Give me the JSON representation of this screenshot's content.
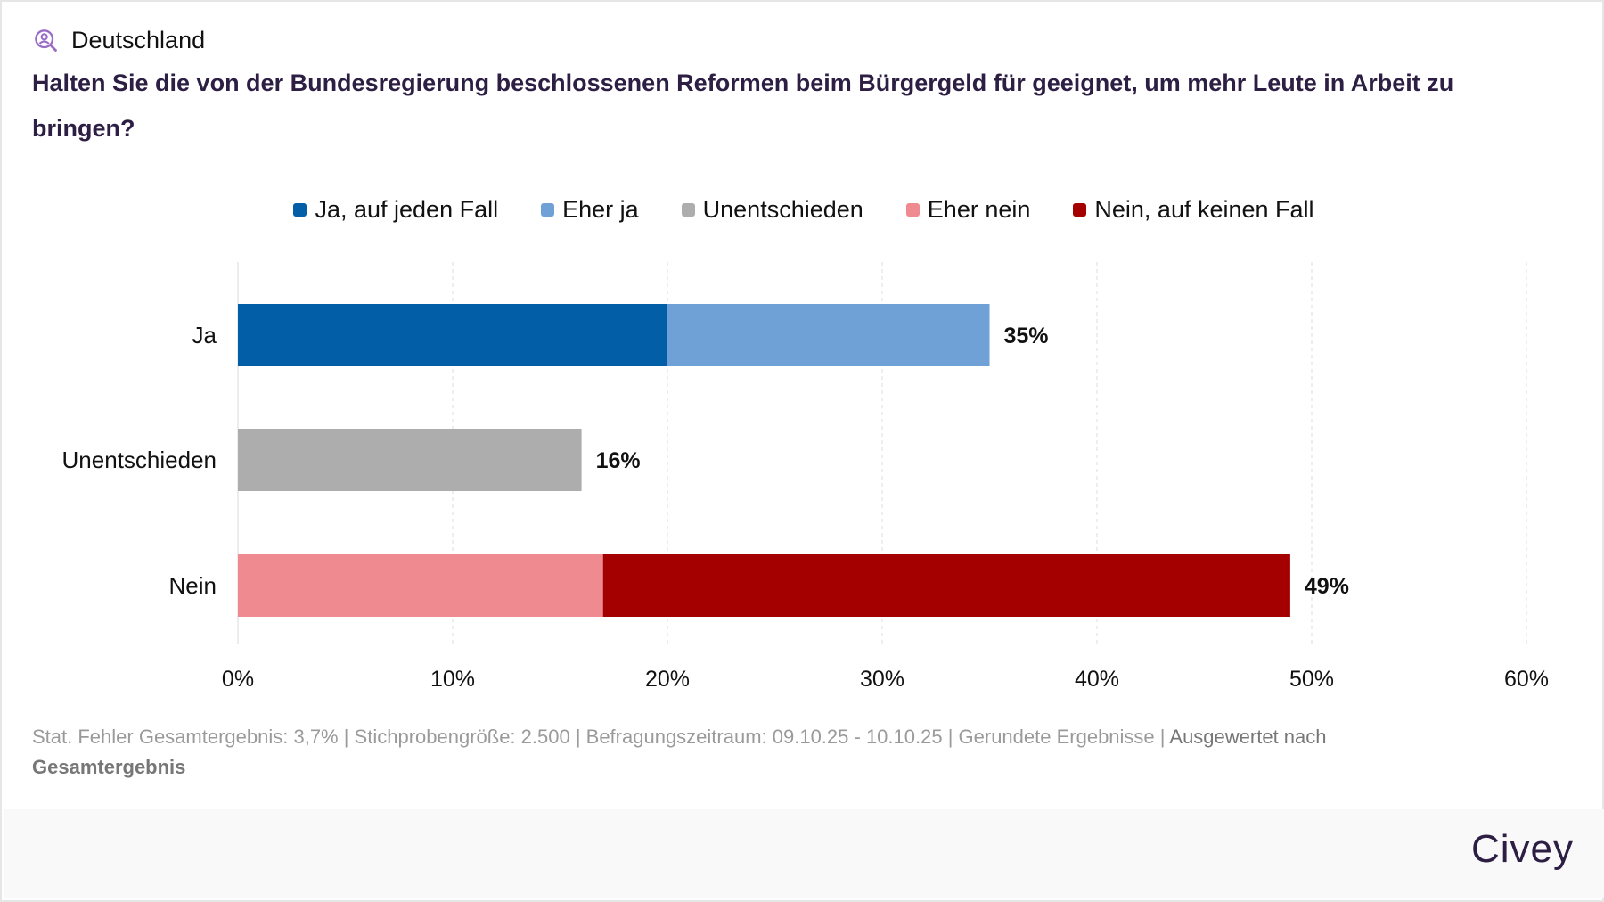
{
  "header": {
    "region_icon": "person-search-icon",
    "region": "Deutschland",
    "question": "Halten Sie die von der Bundesregierung beschlossenen Reformen beim Bürgergeld für geeignet, um mehr Leute in Arbeit zu bringen?"
  },
  "colors": {
    "ja_auf_jeden_fall": "#025ea6",
    "eher_ja": "#6fa1d6",
    "unentschieden": "#adadad",
    "eher_nein": "#f08a91",
    "nein_auf_keinen_fall": "#a50000",
    "title": "#2d1e44"
  },
  "chart_data": {
    "type": "bar",
    "orientation": "horizontal",
    "stacked": true,
    "title": "Halten Sie die von der Bundesregierung beschlossenen Reformen beim Bürgergeld für geeignet, um mehr Leute in Arbeit zu bringen?",
    "categories": [
      "Ja",
      "Unentschieden",
      "Nein"
    ],
    "series": [
      {
        "name": "Ja, auf jeden Fall",
        "color": "#025ea6",
        "values": [
          20,
          0,
          0
        ]
      },
      {
        "name": "Eher ja",
        "color": "#6fa1d6",
        "values": [
          15,
          0,
          0
        ]
      },
      {
        "name": "Unentschieden",
        "color": "#adadad",
        "values": [
          0,
          16,
          0
        ]
      },
      {
        "name": "Eher nein",
        "color": "#f08a91",
        "values": [
          0,
          0,
          17
        ]
      },
      {
        "name": "Nein, auf keinen Fall",
        "color": "#a50000",
        "values": [
          0,
          0,
          32
        ]
      }
    ],
    "totals": [
      35,
      16,
      49
    ],
    "total_labels": [
      "35%",
      "16%",
      "49%"
    ],
    "xlim": [
      0,
      60
    ],
    "xticks": [
      0,
      10,
      20,
      30,
      40,
      50,
      60
    ],
    "xtick_labels": [
      "0%",
      "10%",
      "20%",
      "30%",
      "40%",
      "50%",
      "60%"
    ],
    "grid": true,
    "legend_position": "top",
    "xlabel": "",
    "ylabel": ""
  },
  "legend": [
    {
      "label": "Ja, auf jeden Fall",
      "color": "#025ea6"
    },
    {
      "label": "Eher ja",
      "color": "#6fa1d6"
    },
    {
      "label": "Unentschieden",
      "color": "#adadad"
    },
    {
      "label": "Eher nein",
      "color": "#f08a91"
    },
    {
      "label": "Nein, auf keinen Fall",
      "color": "#a50000"
    }
  ],
  "footer": {
    "meta": "Stat. Fehler Gesamtergebnis: 3,7% | Stichprobengröße: 2.500 | Befragungszeitraum: 09.10.25 - 10.10.25 | Gerundete Ergebnisse | ",
    "evaluated_label": "Ausgewertet nach",
    "evaluated_value": "Gesamtergebnis",
    "brand": "Civey"
  }
}
